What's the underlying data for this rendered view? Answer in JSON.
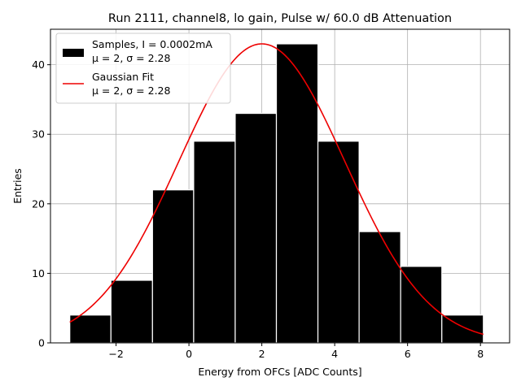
{
  "chart_data": {
    "type": "bar",
    "title": "Run 2111, channel8, lo gain, Pulse w/ 60.0 dB Attenuation",
    "xlabel": "Energy from OFCs [ADC Counts]",
    "ylabel": "Entries",
    "xlim": [
      -3.8,
      8.8
    ],
    "ylim": [
      0,
      45.1
    ],
    "xticks": [
      -2,
      0,
      2,
      4,
      6,
      8
    ],
    "yticks": [
      0,
      10,
      20,
      30,
      40
    ],
    "xtick_labels": [
      "−2",
      "0",
      "2",
      "4",
      "6",
      "8"
    ],
    "ytick_labels": [
      "0",
      "10",
      "20",
      "30",
      "40"
    ],
    "grid": true,
    "bin_edges": [
      -3.27,
      -2.14,
      -1.0,
      0.13,
      1.27,
      2.4,
      3.54,
      4.67,
      5.81,
      6.94,
      8.08
    ],
    "counts": [
      4,
      9,
      22,
      29,
      33,
      43,
      29,
      16,
      11,
      4
    ],
    "bar_color": "#000000",
    "bar_edge_color": "#ffffff",
    "fit": {
      "name": "Gaussian Fit",
      "mu": 2.0,
      "sigma": 2.28,
      "amplitude": 43.0,
      "x_range": [
        -3.27,
        8.08
      ],
      "color": "#ee0000"
    },
    "legend": {
      "placement": "upper-left",
      "entries": [
        {
          "line1": "Samples, I = 0.0002mA",
          "line2": "μ = 2, σ = 2.28",
          "marker": "patch",
          "color": "#000000"
        },
        {
          "line1": "Gaussian Fit",
          "line2": "μ = 2, σ = 2.28",
          "marker": "line",
          "color": "#ee0000"
        }
      ]
    }
  }
}
